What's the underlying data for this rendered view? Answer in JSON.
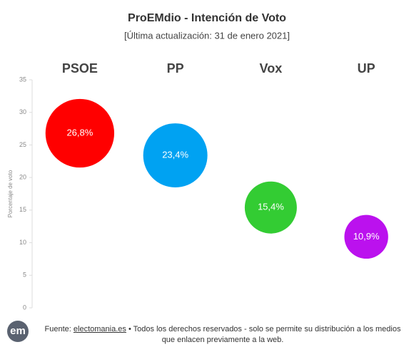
{
  "chart_data": {
    "type": "bubble",
    "title": "ProEMdio - Intención de Voto",
    "subtitle": "[Última actualización: 31 de enero 2021]",
    "ylabel": "Porcentaje de voto",
    "categories": [
      "PSOE",
      "PP",
      "Vox",
      "UP"
    ],
    "values": [
      26.8,
      23.4,
      15.4,
      10.9
    ],
    "value_labels": [
      "26,8%",
      "23,4%",
      "15,4%",
      "10,9%"
    ],
    "colors": [
      "#ff0000",
      "#00a2f2",
      "#33cc33",
      "#bb11ee"
    ],
    "ylim": [
      0,
      35
    ],
    "yticks": [
      0,
      5,
      10,
      15,
      20,
      25,
      30,
      35
    ],
    "grid": false
  },
  "footer": {
    "logo": "em",
    "prefix": "Fuente:",
    "link": "electomania.es",
    "text": "• Todos los derechos reservados - solo se permite su distribución a los medios que enlacen previamente a la web."
  }
}
